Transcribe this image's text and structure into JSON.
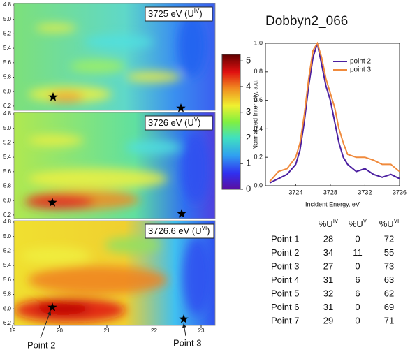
{
  "heatmaps": {
    "panels": [
      {
        "label": "3725 eV (U",
        "sup": "IV",
        "end": ")"
      },
      {
        "label": "3726 eV (U",
        "sup": "V",
        "end": ")"
      },
      {
        "label": "3726.6 eV (U",
        "sup": "VI",
        "end": ")"
      }
    ],
    "yticks": [
      4.8,
      {
        "value": 5,
        "label": "5.0"
      },
      5.2,
      5.4,
      5.6,
      5.8,
      {
        "value": 6,
        "label": "6.0"
      },
      6.2
    ],
    "xticks": [
      19,
      20,
      21,
      22,
      23
    ],
    "annotations": [
      "Point 2",
      "Point 3"
    ]
  },
  "colorbar": {
    "clim": [
      0,
      5.25
    ],
    "ticks": [
      0,
      1,
      2,
      3,
      4,
      5
    ]
  },
  "chart_data": {
    "type": "line",
    "title": "Dobbyn2_066",
    "x_label": "Incident Energy, eV",
    "y_label": "Normalized Intensity, a.u.",
    "x": [
      3721,
      3722,
      3723,
      3724,
      3724.5,
      3725,
      3725.5,
      3726,
      3726.5,
      3727,
      3727.5,
      3728,
      3728.5,
      3729,
      3729.5,
      3730,
      3731,
      3732,
      3733,
      3734,
      3735,
      3736
    ],
    "series": [
      {
        "name": "point 2",
        "color": "#4b1fa0",
        "values": [
          0.02,
          0.05,
          0.08,
          0.15,
          0.25,
          0.45,
          0.7,
          0.9,
          1.0,
          0.85,
          0.7,
          0.6,
          0.45,
          0.3,
          0.2,
          0.15,
          0.1,
          0.12,
          0.08,
          0.06,
          0.08,
          0.05
        ]
      },
      {
        "name": "point 3",
        "color": "#f08a3c",
        "values": [
          0.03,
          0.1,
          0.12,
          0.2,
          0.3,
          0.5,
          0.75,
          0.95,
          1.0,
          0.9,
          0.75,
          0.65,
          0.55,
          0.4,
          0.3,
          0.22,
          0.2,
          0.2,
          0.18,
          0.15,
          0.15,
          0.1
        ]
      }
    ],
    "xlim": [
      3720.5,
      3736
    ],
    "ylim": [
      0,
      1.0
    ],
    "xticks": [
      3724,
      3728,
      3732,
      3736
    ],
    "yticks": [
      {
        "value": 0,
        "label": "0.0"
      },
      {
        "value": 0.2,
        "label": "0.2"
      },
      {
        "value": 0.4,
        "label": "0.4"
      },
      {
        "value": 0.6,
        "label": "0.6"
      },
      {
        "value": 0.8,
        "label": "0.8"
      },
      {
        "value": 1,
        "label": "1.0"
      }
    ],
    "legend": "upper right"
  },
  "table": {
    "headers": [
      {
        "text": "%U",
        "sup": "IV"
      },
      {
        "text": "%U",
        "sup": "V"
      },
      {
        "text": "%U",
        "sup": "VI"
      }
    ],
    "rows": [
      [
        "Point 1",
        28,
        0,
        72
      ],
      [
        "Point 2",
        34,
        11,
        55
      ],
      [
        "Point 3",
        27,
        0,
        73
      ],
      [
        "Point 4",
        31,
        6,
        63
      ],
      [
        "Point 5",
        32,
        6,
        62
      ],
      [
        "Point 6",
        31,
        0,
        69
      ],
      [
        "Point 7",
        29,
        0,
        71
      ]
    ]
  }
}
